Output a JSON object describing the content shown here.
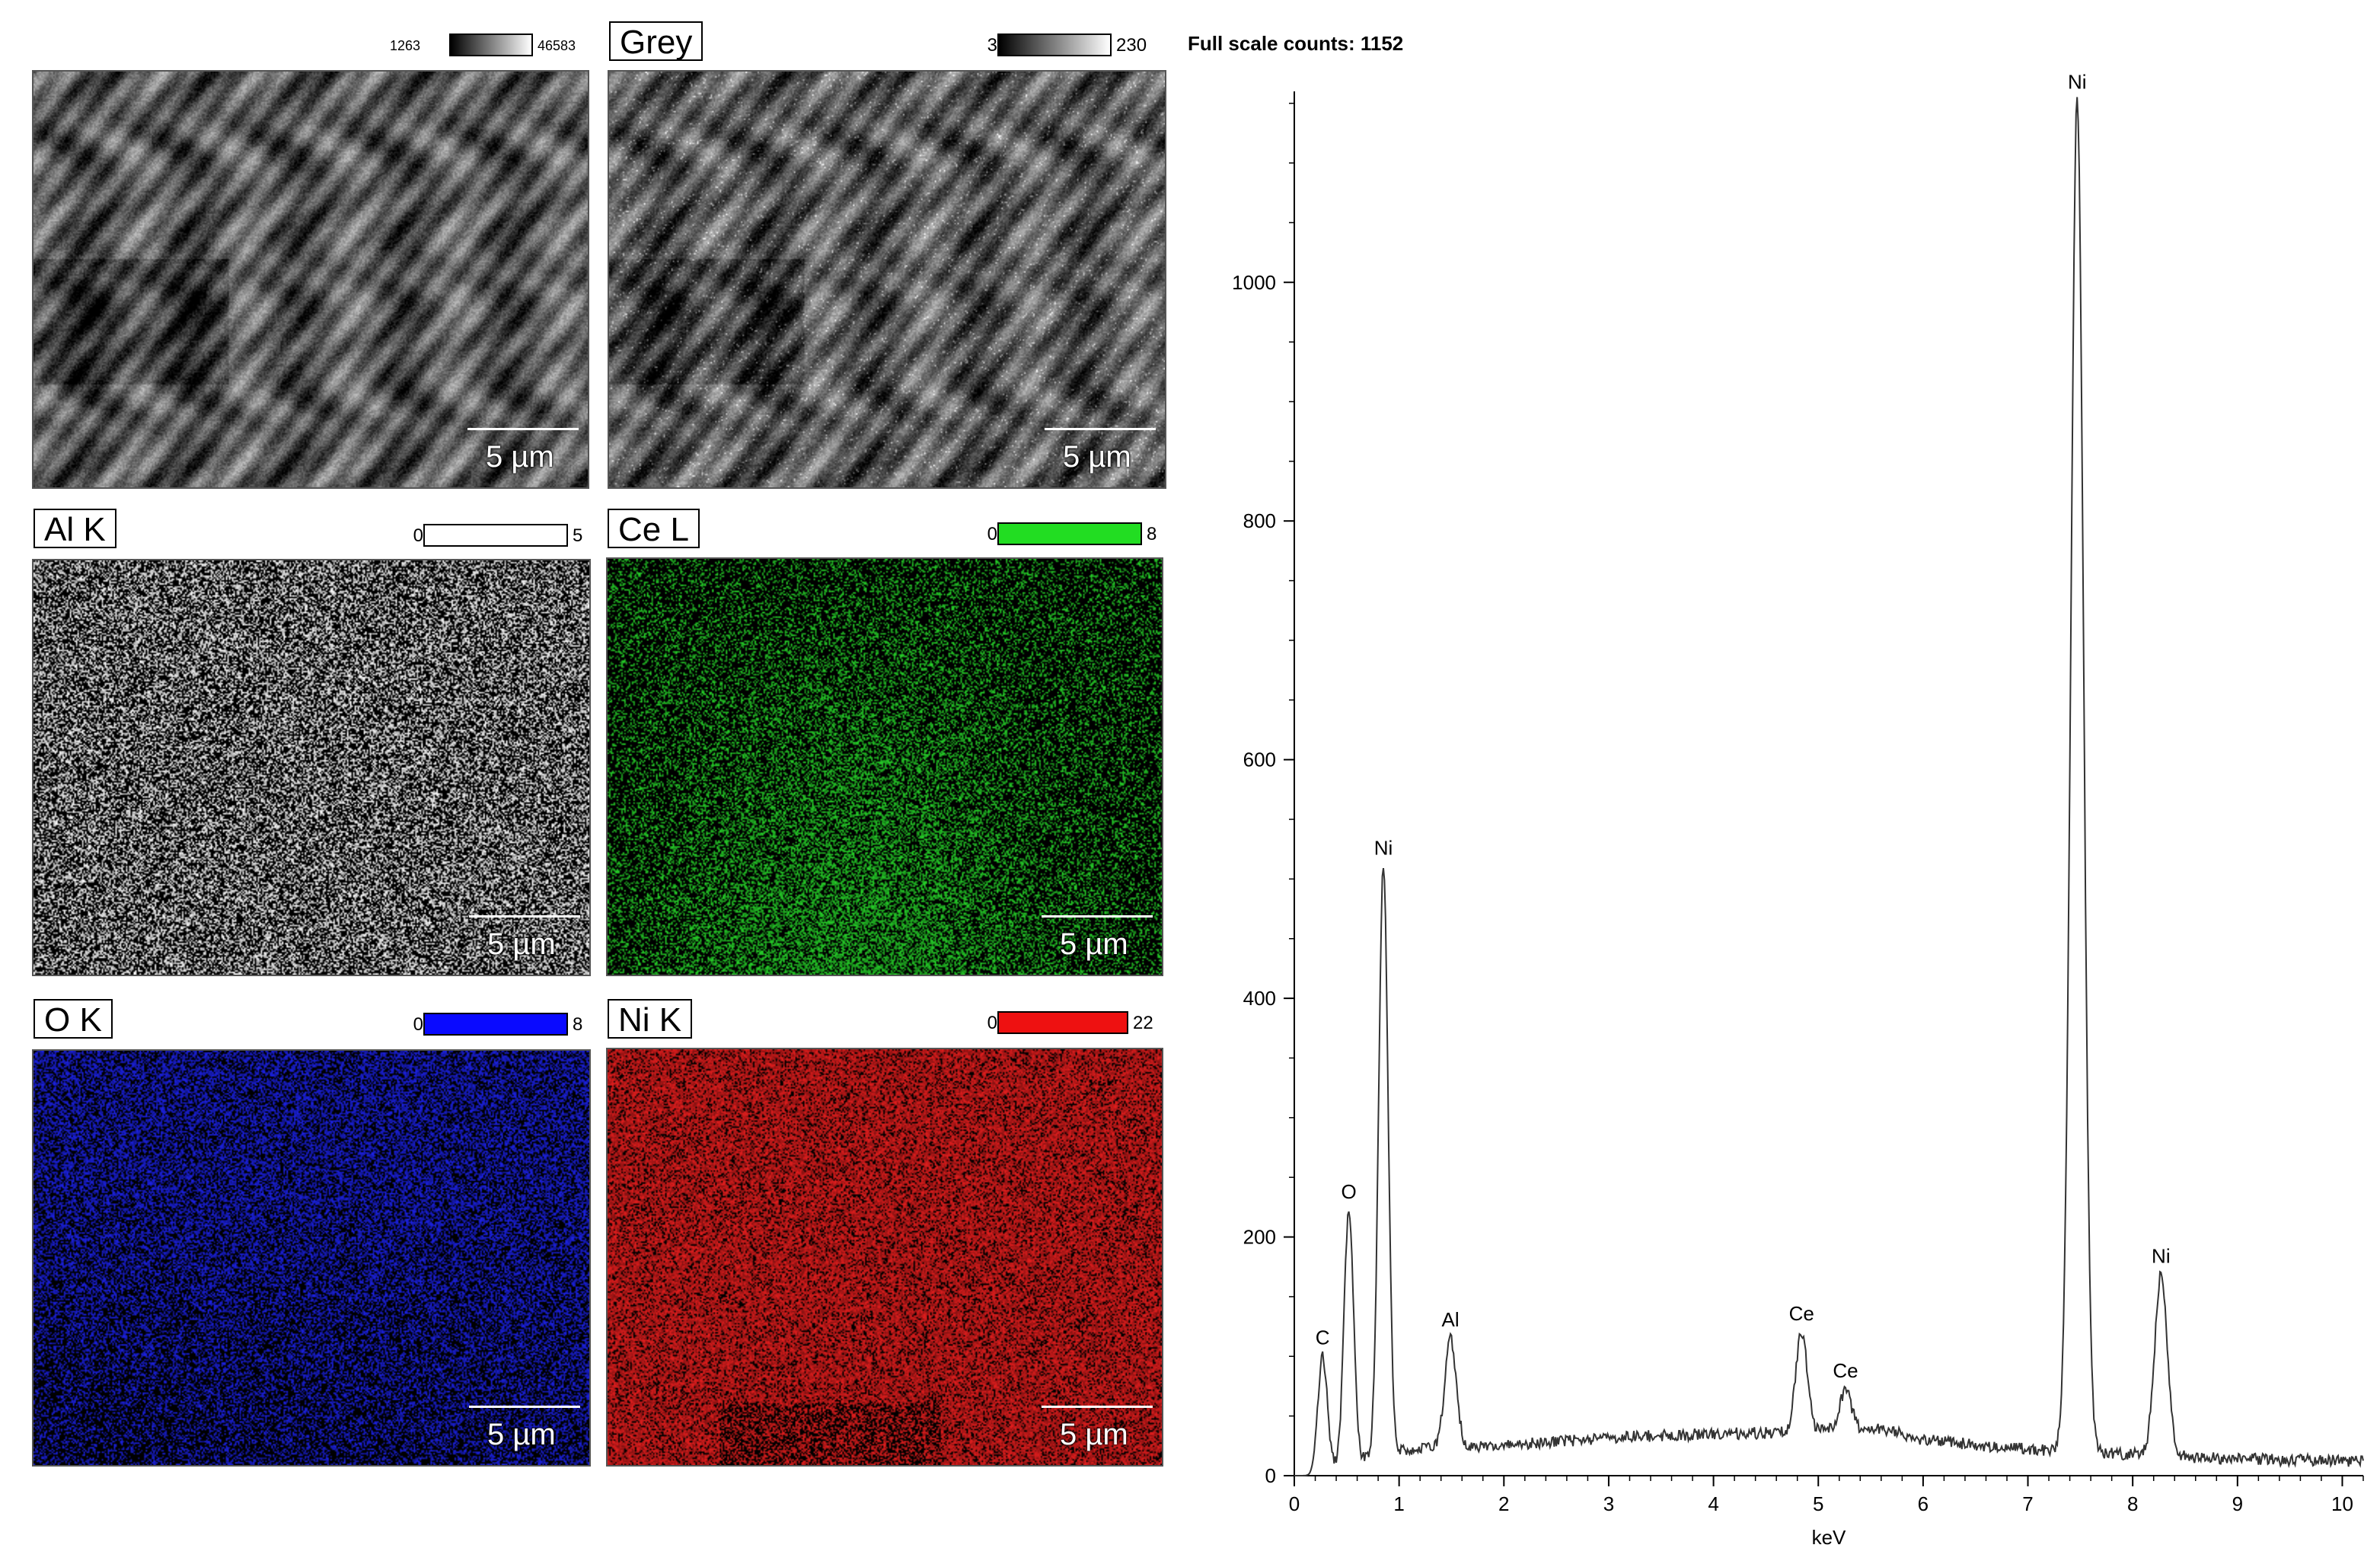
{
  "panels": [
    {
      "id": "se",
      "label": "",
      "scale_min": "1263",
      "scale_max": "46583",
      "scale_colors": [
        "#000000",
        "#ffffff"
      ],
      "color": "#ffffff",
      "kind": "grey-se",
      "scalebar": "5 µm"
    },
    {
      "id": "grey",
      "label": "Grey",
      "scale_min": "3",
      "scale_max": "230",
      "scale_colors": [
        "#000000",
        "#ffffff"
      ],
      "color": "#ffffff",
      "kind": "grey-bse",
      "scalebar": "5 µm"
    },
    {
      "id": "al",
      "label": "Al K",
      "scale_min": "0",
      "scale_max": "5",
      "scale_colors": [
        "#ffffff",
        "#ffffff"
      ],
      "color": "#ffffff",
      "kind": "dots",
      "scalebar": "5 µm"
    },
    {
      "id": "ce",
      "label": "Ce L",
      "scale_min": "0",
      "scale_max": "8",
      "scale_colors": [
        "#22dd22",
        "#22dd22"
      ],
      "color": "#27d62a",
      "kind": "dots",
      "scalebar": "5 µm"
    },
    {
      "id": "o",
      "label": "O K",
      "scale_min": "0",
      "scale_max": "8",
      "scale_colors": [
        "#0a0aff",
        "#0a0aff"
      ],
      "color": "#1c22e8",
      "kind": "dots",
      "scalebar": "5 µm"
    },
    {
      "id": "ni",
      "label": "Ni K",
      "scale_min": "0",
      "scale_max": "22",
      "scale_colors": [
        "#ee1111",
        "#ee1111"
      ],
      "color": "#e41e1e",
      "kind": "dots",
      "scalebar": "5 µm"
    }
  ],
  "chart_data": {
    "type": "line",
    "title": "Full scale counts: 1152",
    "xlabel": "keV",
    "ylabel": "",
    "xlim": [
      0,
      10.2
    ],
    "ylim": [
      0,
      1152
    ],
    "x_ticks": [
      0,
      1,
      2,
      3,
      4,
      5,
      6,
      7,
      8,
      9,
      10
    ],
    "y_ticks": [
      0,
      200,
      400,
      600,
      800,
      1000
    ],
    "peaks": [
      {
        "element": "C",
        "x": 0.27,
        "y": 100
      },
      {
        "element": "O",
        "x": 0.52,
        "y": 222
      },
      {
        "element": "Ni",
        "x": 0.85,
        "y": 510
      },
      {
        "element": "Al",
        "x": 1.49,
        "y": 115
      },
      {
        "element": "Ce",
        "x": 4.84,
        "y": 120
      },
      {
        "element": "Ce",
        "x": 5.26,
        "y": 72
      },
      {
        "element": "Ni",
        "x": 7.47,
        "y": 1152
      },
      {
        "element": "Ni",
        "x": 8.27,
        "y": 168
      }
    ],
    "background_points": [
      {
        "x": 0.0,
        "y": 0
      },
      {
        "x": 0.15,
        "y": 0
      },
      {
        "x": 1.0,
        "y": 22
      },
      {
        "x": 2.0,
        "y": 25
      },
      {
        "x": 3.0,
        "y": 32
      },
      {
        "x": 4.0,
        "y": 35
      },
      {
        "x": 4.6,
        "y": 36
      },
      {
        "x": 5.6,
        "y": 40
      },
      {
        "x": 6.0,
        "y": 30
      },
      {
        "x": 7.0,
        "y": 22
      },
      {
        "x": 8.0,
        "y": 18
      },
      {
        "x": 9.0,
        "y": 14
      },
      {
        "x": 10.2,
        "y": 12
      }
    ]
  }
}
